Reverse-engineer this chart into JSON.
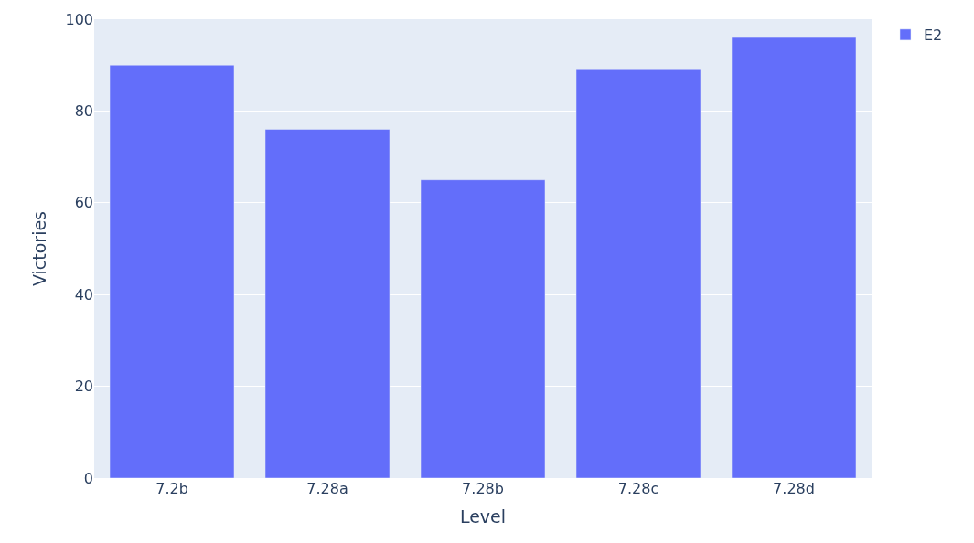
{
  "chart_data": {
    "type": "bar",
    "xlabel": "Level",
    "ylabel": "Victories",
    "categories": [
      "7.2b",
      "7.28a",
      "7.28b",
      "7.28c",
      "7.28d"
    ],
    "series": [
      {
        "name": "E2",
        "color": "#636efa",
        "values": [
          90,
          76,
          65,
          89,
          96
        ]
      }
    ],
    "ylim": [
      0,
      100
    ],
    "yticks": [
      0,
      20,
      40,
      60,
      80,
      100
    ],
    "grid": "y",
    "legend": "top right"
  }
}
